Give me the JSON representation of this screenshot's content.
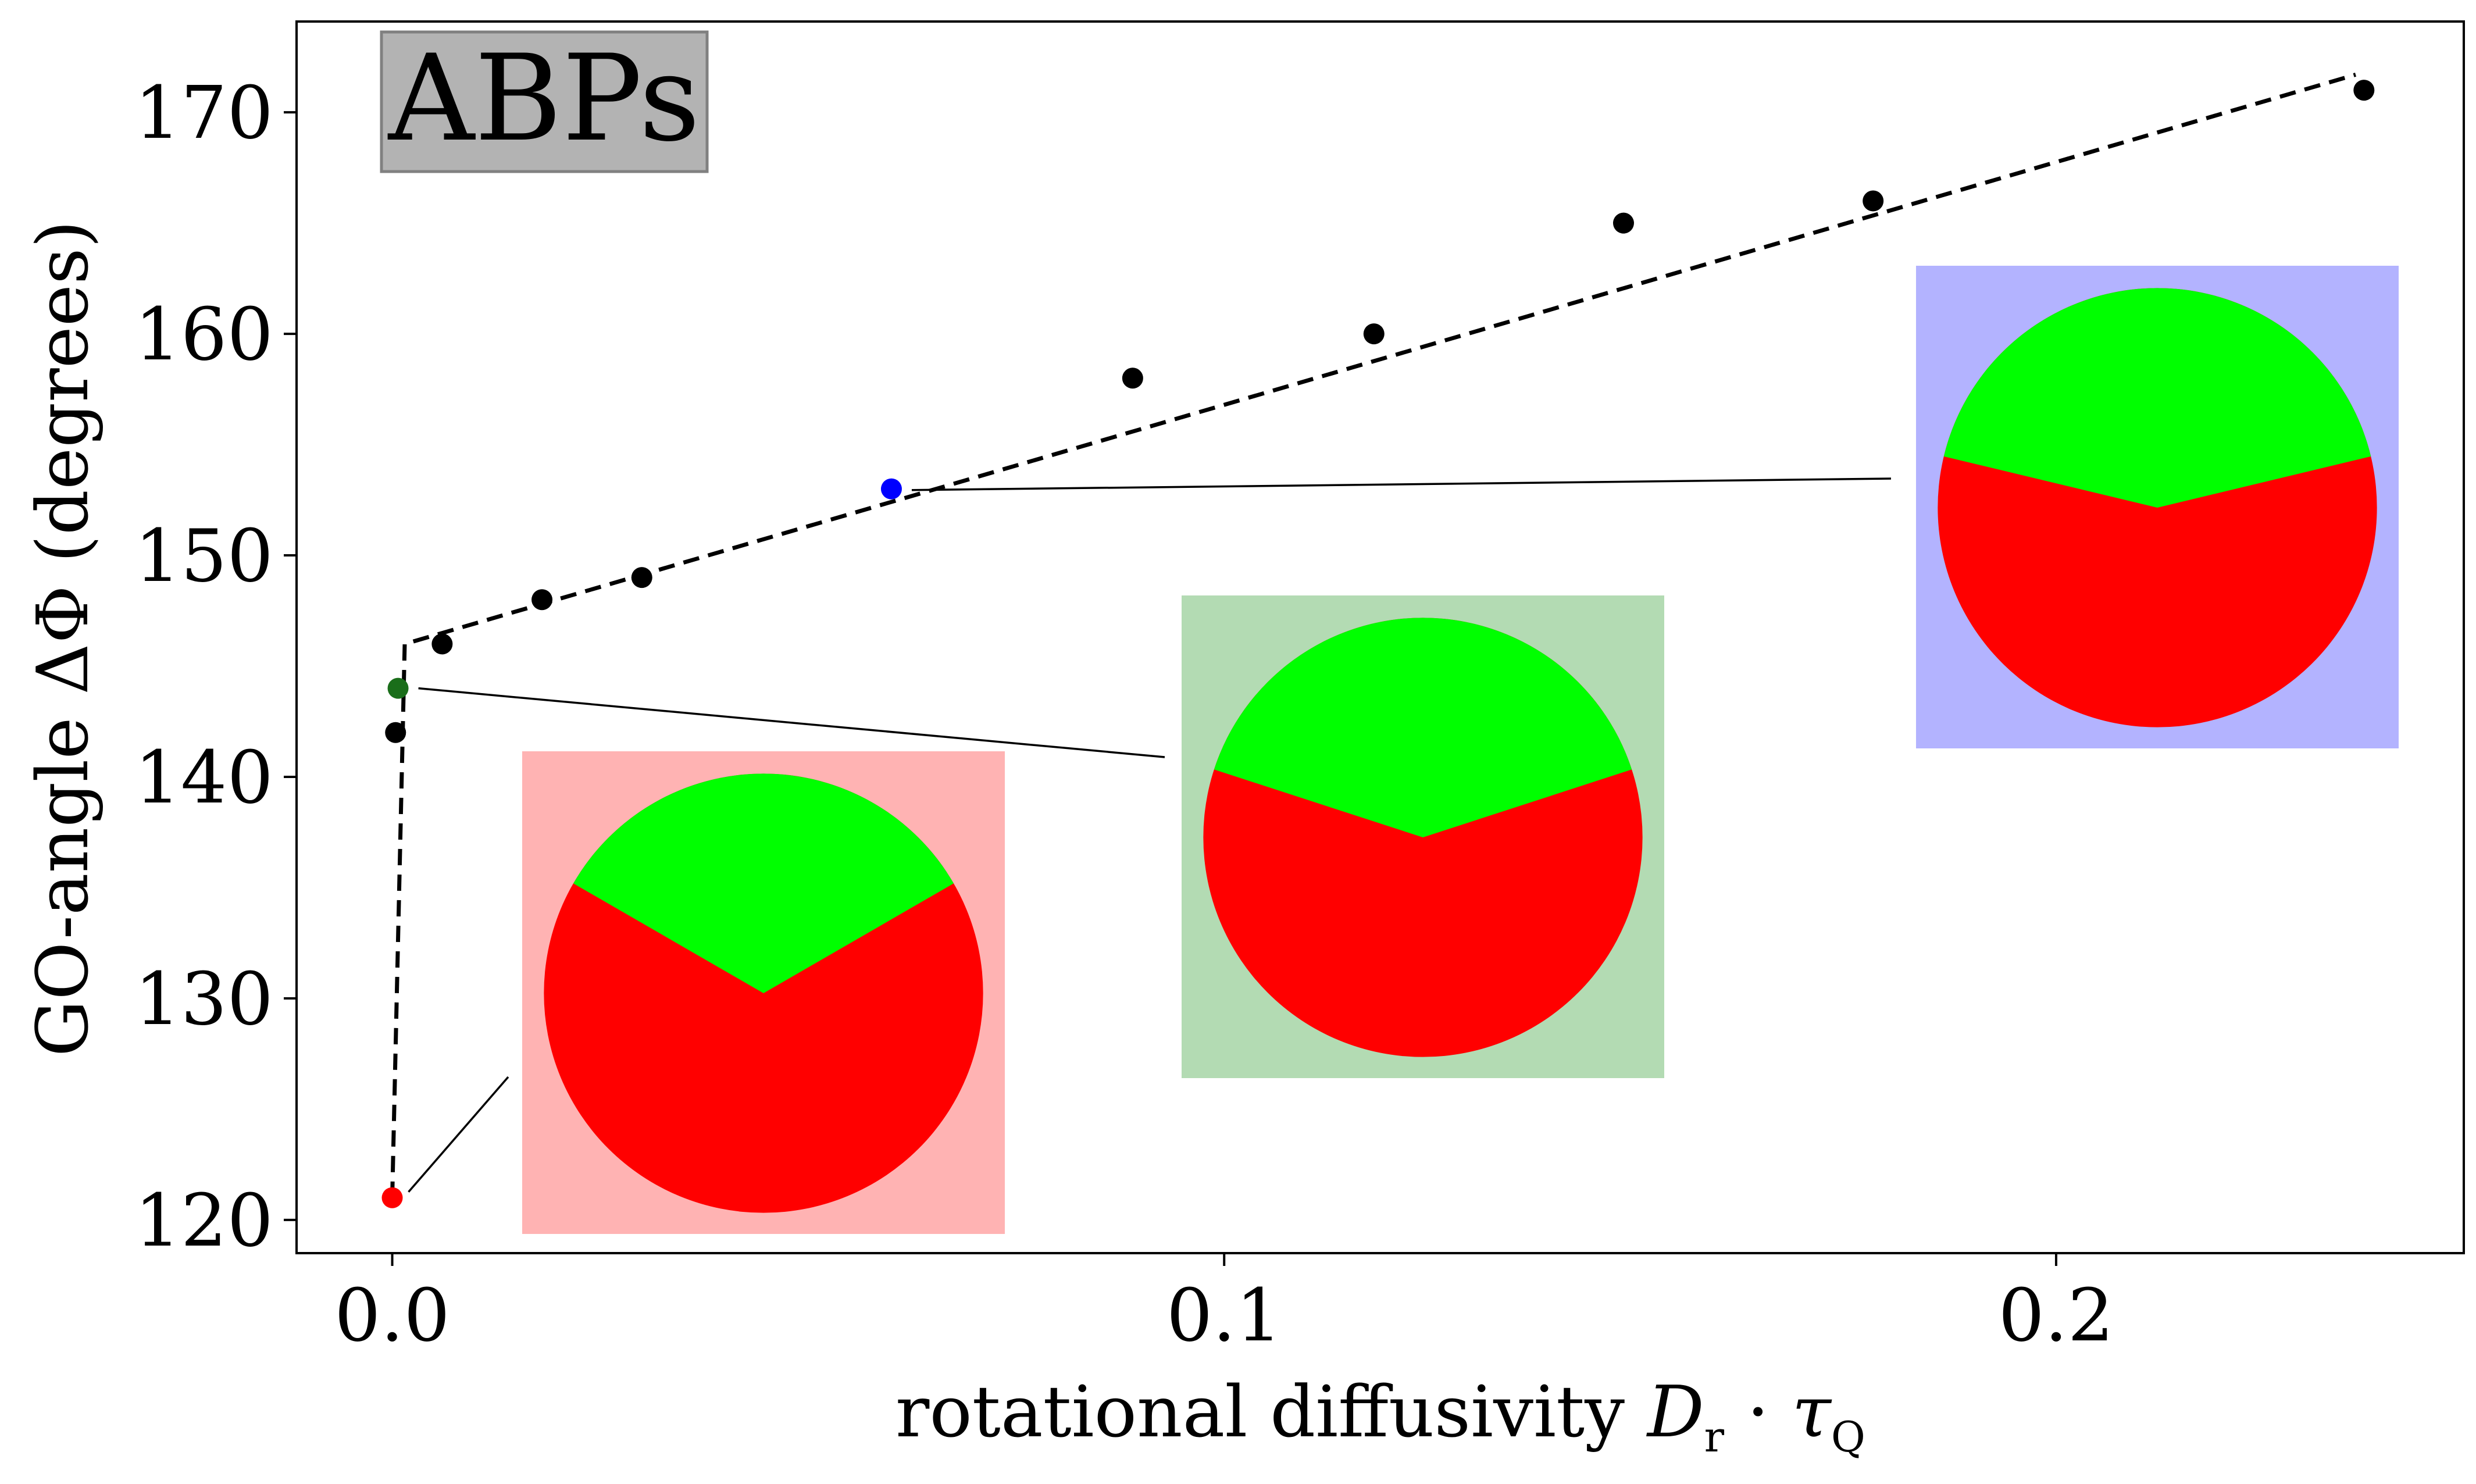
{
  "chart_data": {
    "type": "scatter",
    "badge": "ABPs",
    "xlabel": "rotational diffusivity D_r · τ_Q",
    "xlabel_parts": {
      "prefix": "rotational diffusivity ",
      "d": "D",
      "d_sub": "r",
      "dot": " · ",
      "tau": "τ",
      "tau_sub": "Q"
    },
    "ylabel": "GO-angle ΔΦ (degrees)",
    "xlim": [
      -0.0115,
      0.249
    ],
    "ylim": [
      118.5,
      174.1
    ],
    "x_ticks": [
      0.0,
      0.1,
      0.2
    ],
    "x_tick_labels": [
      "0.0",
      "0.1",
      "0.2"
    ],
    "y_ticks": [
      120,
      130,
      140,
      150,
      160,
      170
    ],
    "y_tick_labels": [
      "120",
      "130",
      "140",
      "150",
      "160",
      "170"
    ],
    "grid": false,
    "points": [
      {
        "x": 0.0,
        "y": 121,
        "color": "#ff0000",
        "highlight": true
      },
      {
        "x": 0.0004,
        "y": 142,
        "color": "#000000"
      },
      {
        "x": 0.0007,
        "y": 144,
        "color": "#1a6e1a",
        "highlight": true
      },
      {
        "x": 0.006,
        "y": 146,
        "color": "#000000"
      },
      {
        "x": 0.018,
        "y": 148,
        "color": "#000000"
      },
      {
        "x": 0.03,
        "y": 149,
        "color": "#000000"
      },
      {
        "x": 0.06,
        "y": 153,
        "color": "#0000ff",
        "highlight": true
      },
      {
        "x": 0.089,
        "y": 158,
        "color": "#000000"
      },
      {
        "x": 0.118,
        "y": 160,
        "color": "#000000"
      },
      {
        "x": 0.148,
        "y": 165,
        "color": "#000000"
      },
      {
        "x": 0.178,
        "y": 166,
        "color": "#000000"
      },
      {
        "x": 0.237,
        "y": 171,
        "color": "#000000"
      }
    ],
    "fit_line": {
      "style": "dashed",
      "color": "#000000",
      "points": [
        [
          0.0,
          121
        ],
        [
          0.0015,
          146
        ],
        [
          0.236,
          171.7
        ]
      ]
    },
    "insets": [
      {
        "label": "red",
        "background": "#ffb3b3",
        "top_color": "#00ff00",
        "bottom_color": "#ff0000",
        "opening_angle_deg": 120,
        "links_to_point": 0
      },
      {
        "label": "green",
        "background": "#b3dbb3",
        "top_color": "#00ff00",
        "bottom_color": "#ff0000",
        "opening_angle_deg": 144,
        "links_to_point": 2
      },
      {
        "label": "blue",
        "background": "#b3b3ff",
        "top_color": "#00ff00",
        "bottom_color": "#ff0000",
        "opening_angle_deg": 153,
        "links_to_point": 6
      }
    ]
  }
}
